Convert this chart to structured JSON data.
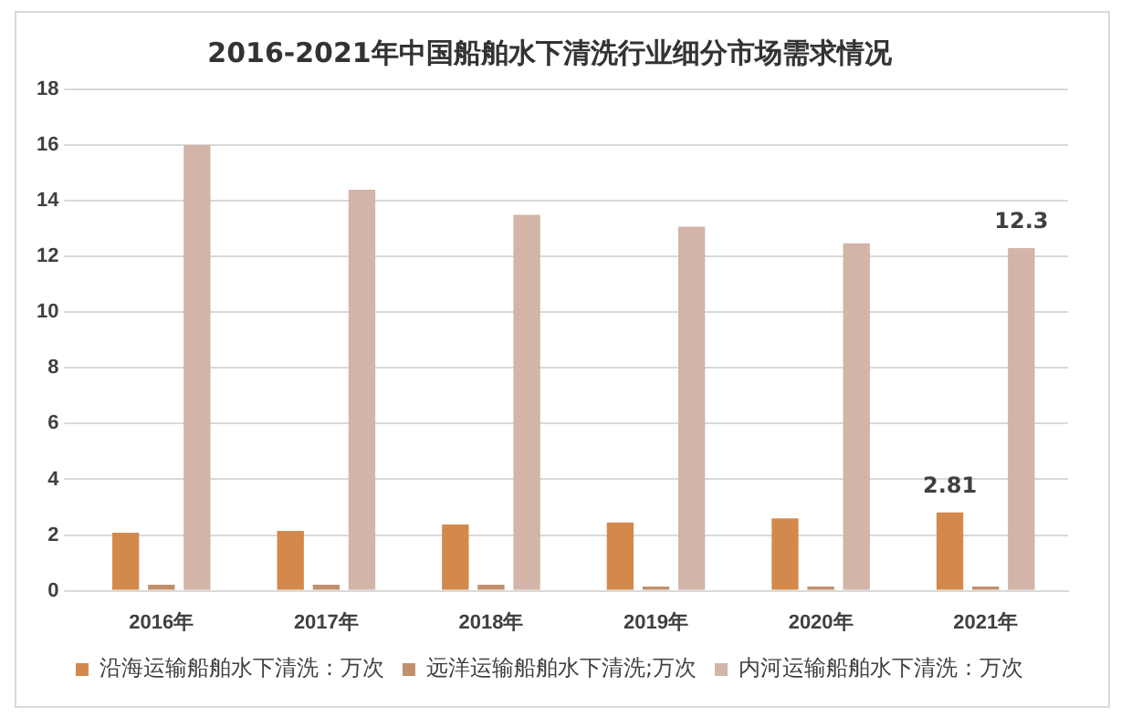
{
  "chart_data": {
    "type": "bar",
    "title": "2016-2021年中国船舶水下清洗行业细分市场需求情况",
    "categories": [
      "2016年",
      "2017年",
      "2018年",
      "2019年",
      "2020年",
      "2021年"
    ],
    "series": [
      {
        "name": "沿海运输船舶水下清洗：万次",
        "color": "#d4894c",
        "values": [
          2.08,
          2.15,
          2.38,
          2.45,
          2.6,
          2.81
        ],
        "value_labels": [
          null,
          null,
          null,
          null,
          null,
          "2.81"
        ]
      },
      {
        "name": "远洋运输船舶水下清洗;万次",
        "color": "#c0906c",
        "values": [
          0.22,
          0.22,
          0.22,
          0.15,
          0.15,
          0.15
        ]
      },
      {
        "name": "内河运输船舶水下清洗：万次",
        "color": "#d2b4a8",
        "values": [
          16.0,
          14.4,
          13.5,
          13.07,
          12.47,
          12.3
        ],
        "value_labels": [
          null,
          null,
          null,
          null,
          null,
          "12.3"
        ]
      }
    ],
    "ylim": [
      0,
      18
    ],
    "yticks": [
      0,
      2,
      4,
      6,
      8,
      10,
      12,
      14,
      16,
      18
    ],
    "grid": "y",
    "legend": "bottom"
  }
}
